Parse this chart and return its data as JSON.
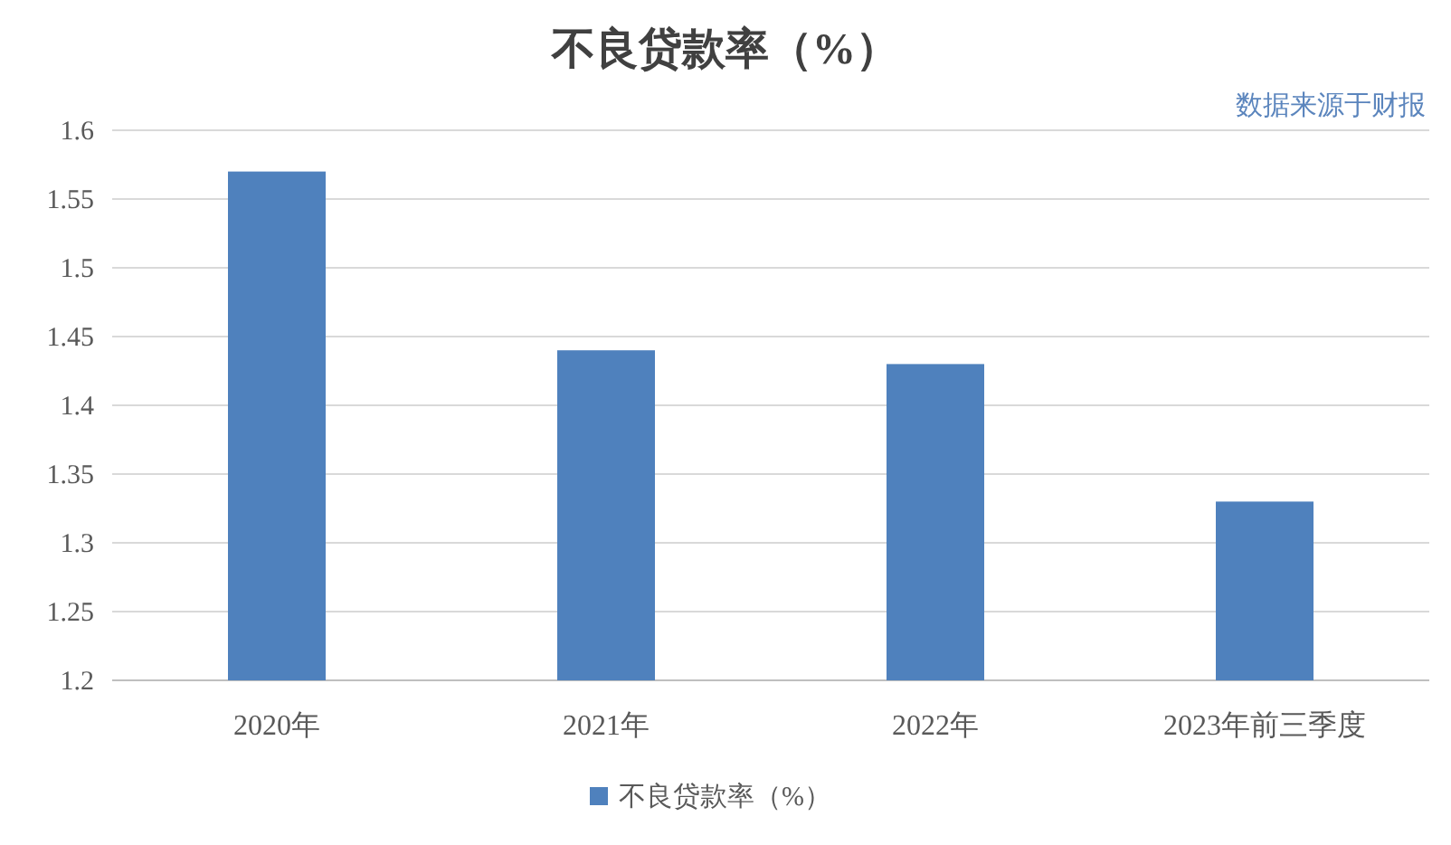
{
  "chart_data": {
    "type": "bar",
    "title": "不良贷款率（%）",
    "categories": [
      "2020年",
      "2021年",
      "2022年",
      "2023年前三季度"
    ],
    "series": [
      {
        "name": "不良贷款率（%）",
        "color": "#4f81bd",
        "values": [
          1.57,
          1.44,
          1.43,
          1.33
        ]
      }
    ],
    "ylim": [
      1.2,
      1.6
    ],
    "yticks": [
      1.2,
      1.25,
      1.3,
      1.35,
      1.4,
      1.45,
      1.5,
      1.55,
      1.6
    ],
    "grid": "y",
    "legend": "bottom",
    "annotations": [
      "数据来源于财报"
    ]
  }
}
